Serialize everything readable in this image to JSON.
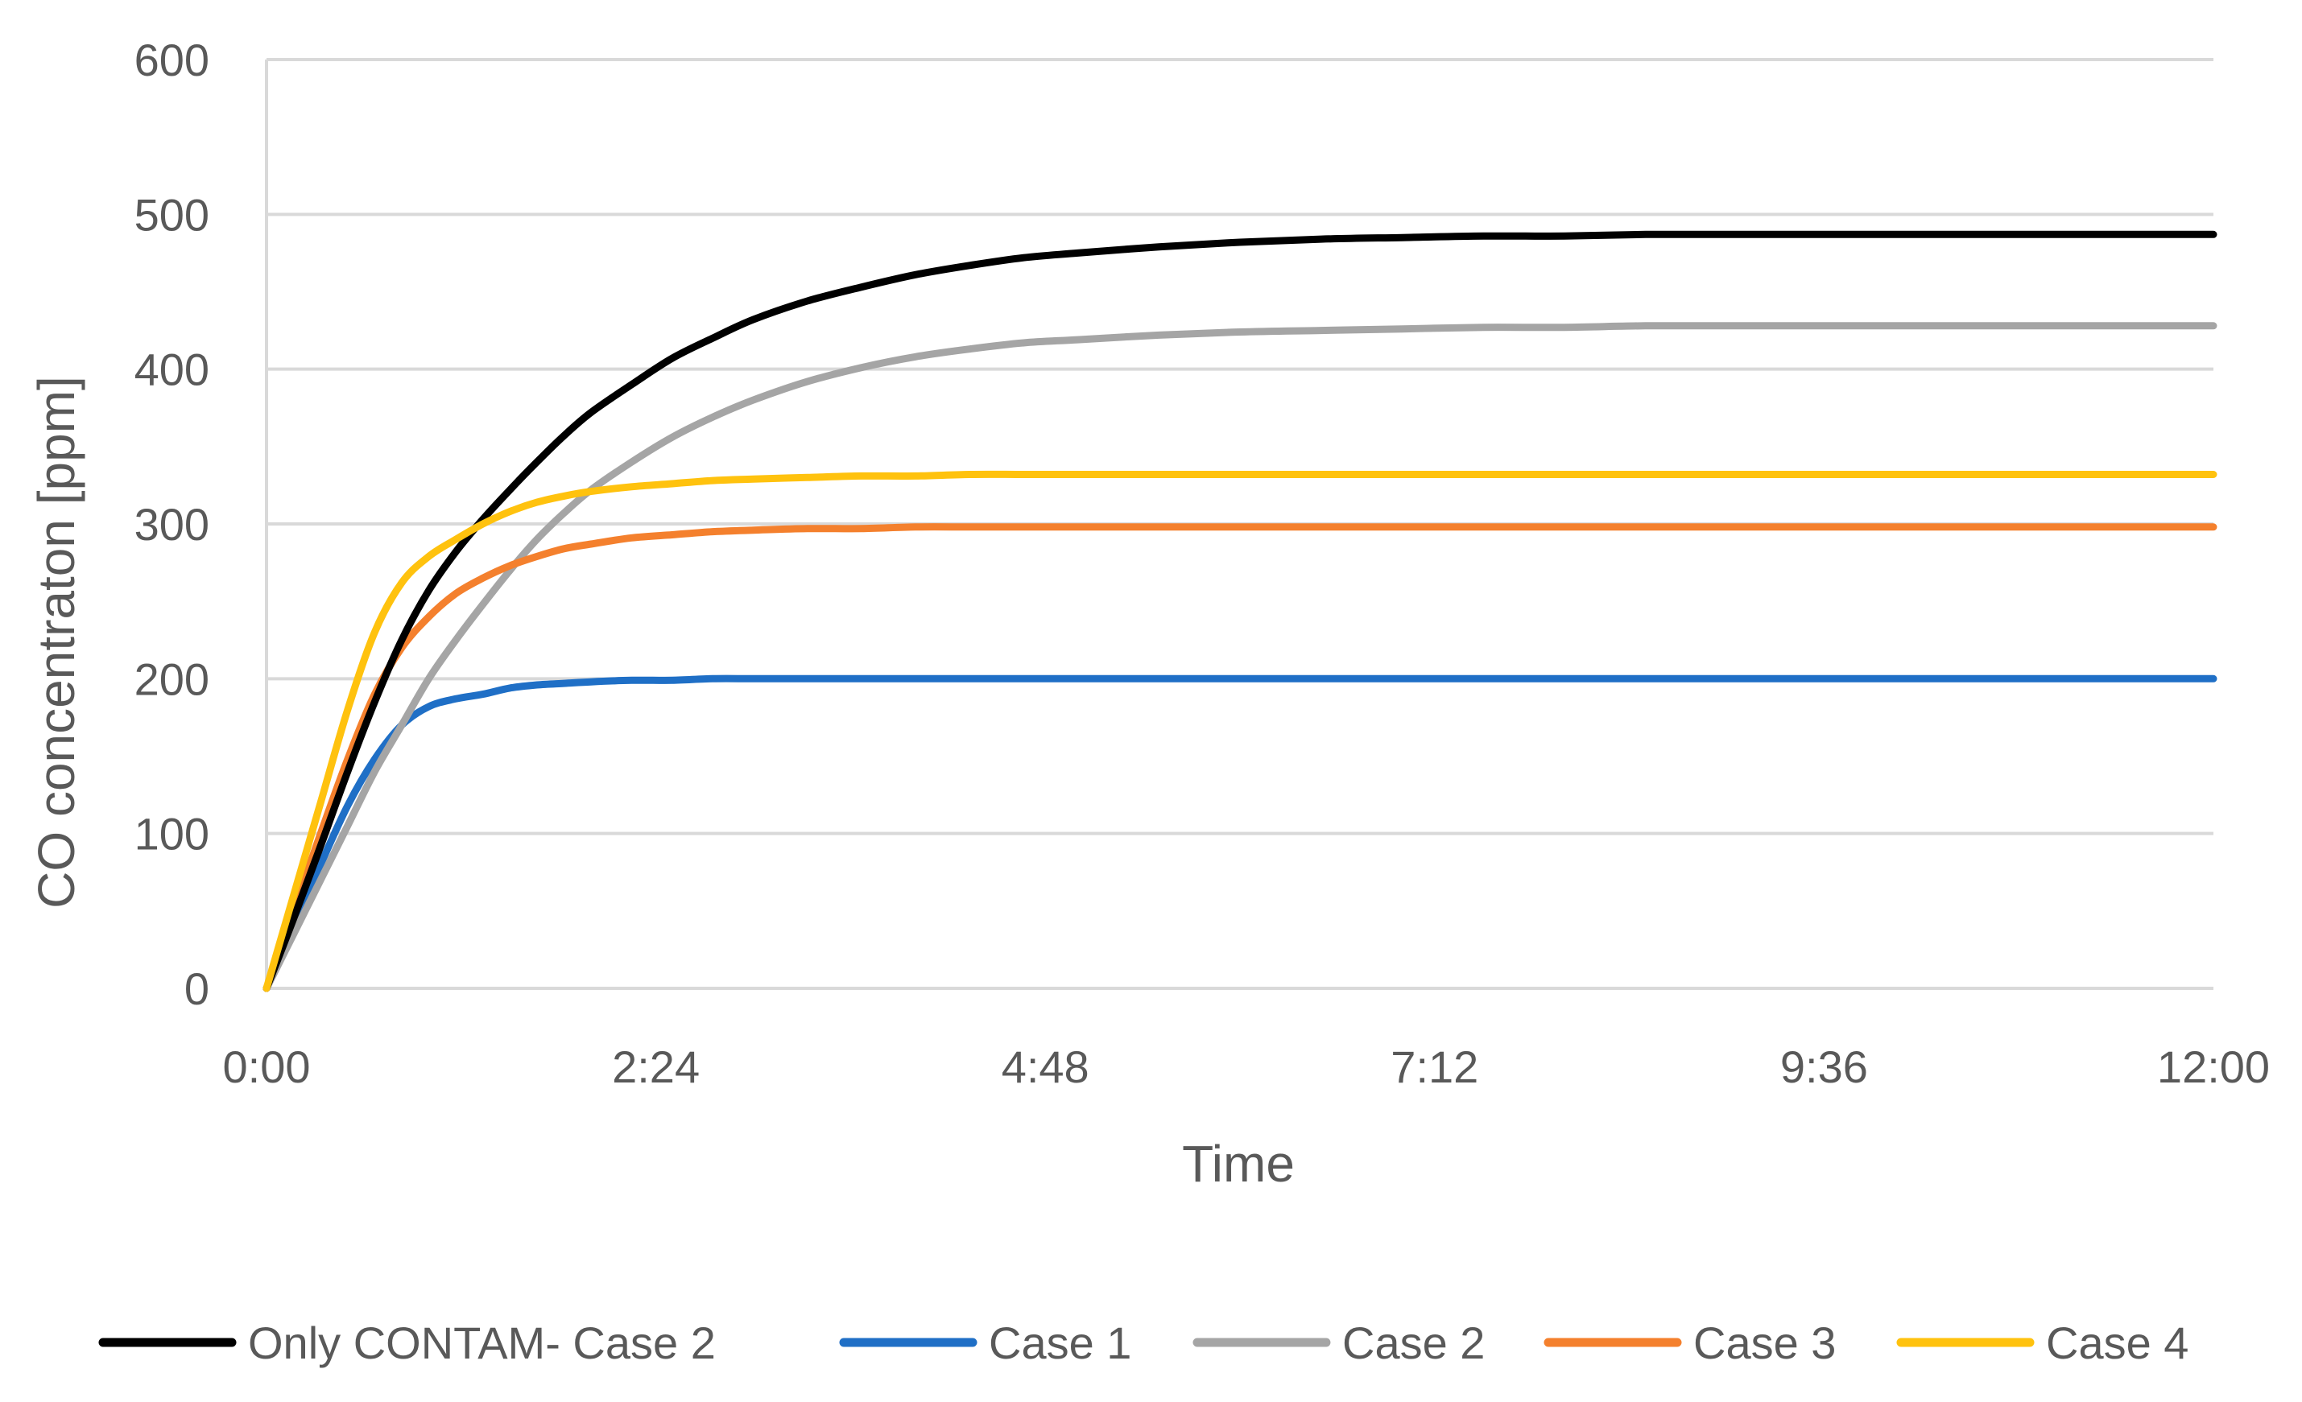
{
  "chart_data": {
    "type": "line",
    "title": "",
    "xlabel": "Time",
    "ylabel": "CO concentraton [ppm]",
    "xlim": [
      0,
      720
    ],
    "ylim": [
      0,
      600
    ],
    "x_ticks": [
      {
        "value": 0,
        "label": "0:00"
      },
      {
        "value": 144,
        "label": "2:24"
      },
      {
        "value": 288,
        "label": "4:48"
      },
      {
        "value": 432,
        "label": "7:12"
      },
      {
        "value": 576,
        "label": "9:36"
      },
      {
        "value": 720,
        "label": "12:00"
      }
    ],
    "y_ticks": [
      0,
      100,
      200,
      300,
      400,
      500,
      600
    ],
    "grid": true,
    "legend_position": "bottom",
    "x": [
      0,
      10,
      20,
      30,
      40,
      50,
      60,
      70,
      80,
      90,
      100,
      110,
      120,
      135,
      150,
      165,
      180,
      200,
      220,
      240,
      260,
      280,
      300,
      330,
      360,
      390,
      420,
      450,
      480,
      510,
      540,
      570,
      600,
      630,
      660,
      690,
      720
    ],
    "series": [
      {
        "name": "Only CONTAM- Case 2",
        "color": "#000000",
        "values": [
          0,
          45,
          92,
          140,
          185,
          225,
          257,
          282,
          303,
          322,
          340,
          357,
          372,
          390,
          407,
          420,
          432,
          444,
          453,
          461,
          467,
          472,
          475,
          479,
          482,
          484,
          485,
          486,
          486,
          487,
          487,
          487,
          487,
          487,
          487,
          487,
          487
        ]
      },
      {
        "name": "Case 1",
        "color": "#1f6fc6",
        "values": [
          0,
          40,
          80,
          118,
          148,
          170,
          182,
          187,
          190,
          194,
          196,
          197,
          198,
          199,
          199,
          200,
          200,
          200,
          200,
          200,
          200,
          200,
          200,
          200,
          200,
          200,
          200,
          200,
          200,
          200,
          200,
          200,
          200,
          200,
          200,
          200,
          200
        ]
      },
      {
        "name": "Case 2",
        "color": "#a5a5a5",
        "values": [
          0,
          35,
          70,
          105,
          140,
          170,
          200,
          225,
          248,
          270,
          290,
          307,
          322,
          340,
          356,
          369,
          380,
          392,
          401,
          408,
          413,
          417,
          419,
          422,
          424,
          425,
          426,
          427,
          427,
          428,
          428,
          428,
          428,
          428,
          428,
          428,
          428
        ]
      },
      {
        "name": "Case 3",
        "color": "#f4802d",
        "values": [
          0,
          50,
          100,
          148,
          190,
          220,
          240,
          255,
          265,
          273,
          279,
          284,
          287,
          291,
          293,
          295,
          296,
          297,
          297,
          298,
          298,
          298,
          298,
          298,
          298,
          298,
          298,
          298,
          298,
          298,
          298,
          298,
          298,
          298,
          298,
          298,
          298
        ]
      },
      {
        "name": "Case 4",
        "color": "#ffc20e",
        "values": [
          0,
          60,
          120,
          180,
          230,
          262,
          279,
          290,
          300,
          308,
          314,
          318,
          321,
          324,
          326,
          328,
          329,
          330,
          331,
          331,
          332,
          332,
          332,
          332,
          332,
          332,
          332,
          332,
          332,
          332,
          332,
          332,
          332,
          332,
          332,
          332,
          332
        ]
      }
    ]
  }
}
